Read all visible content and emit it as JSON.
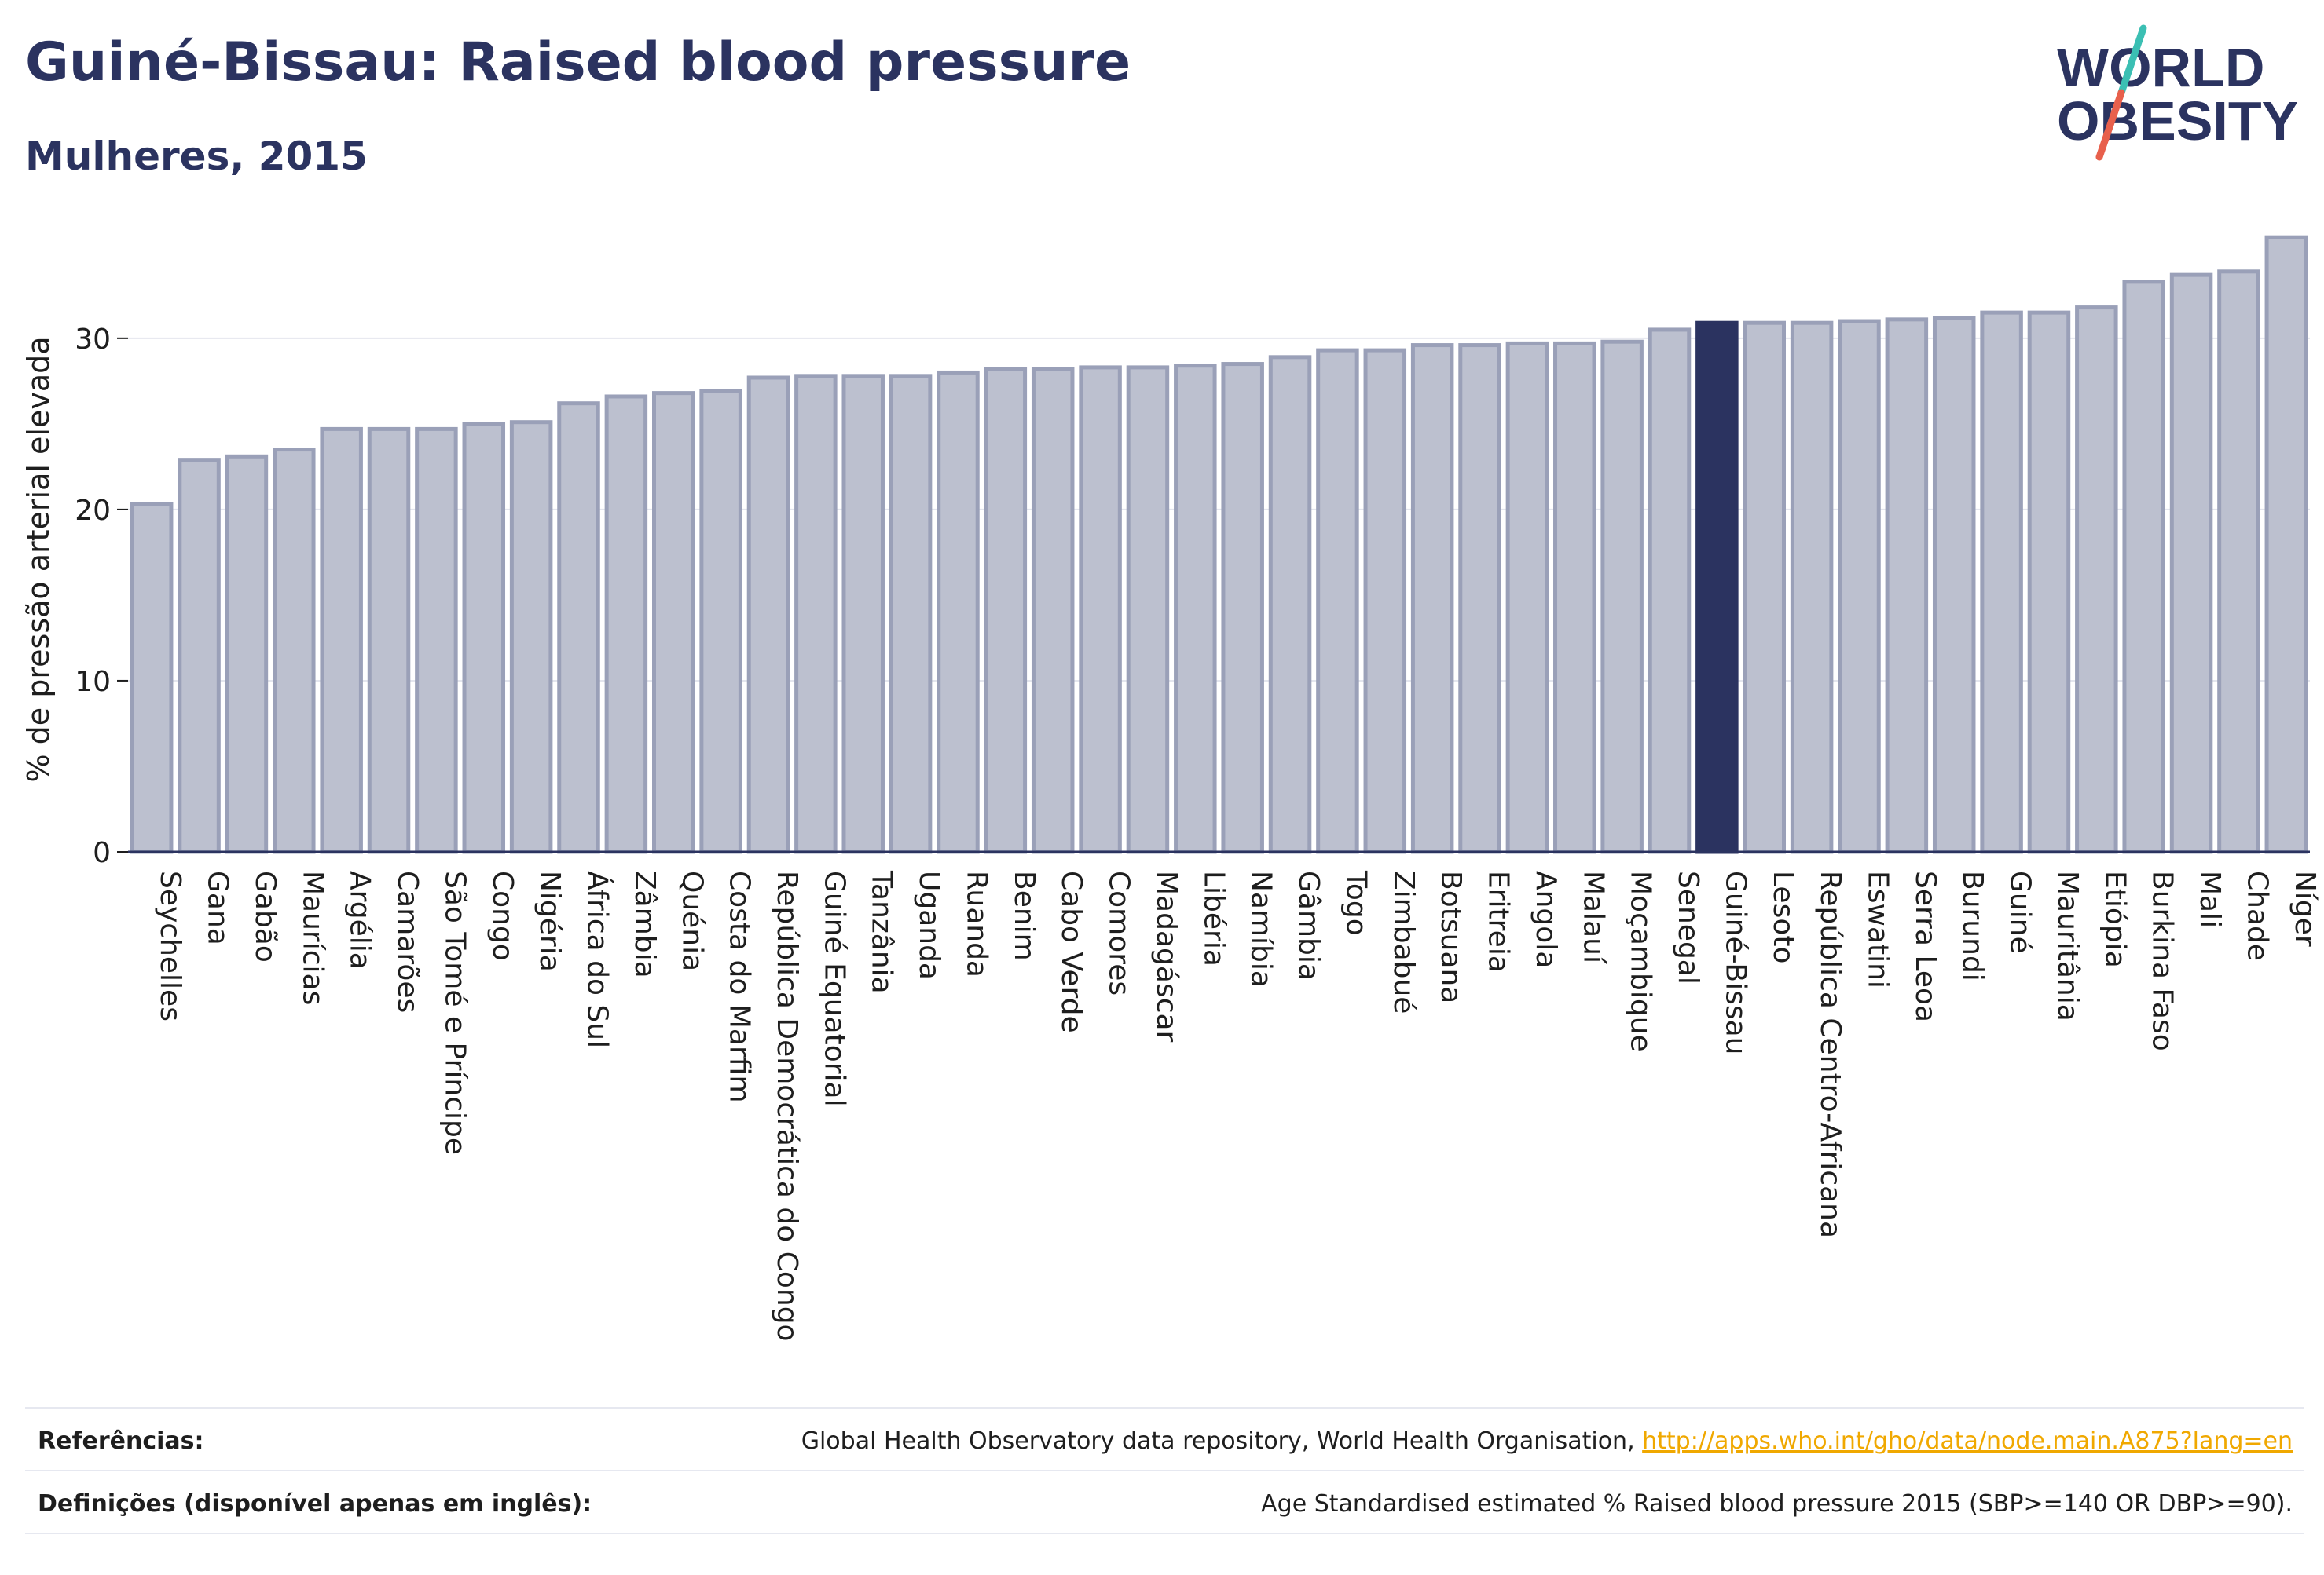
{
  "header": {
    "title": "Guiné-Bissau: Raised blood pressure",
    "subtitle": "Mulheres, 2015",
    "logo_line1": "WORLD",
    "logo_line2": "OBESITY"
  },
  "colors": {
    "bar_default": "#bcc0cf",
    "bar_border": "#9aa0b8",
    "bar_highlight": "#2b3360",
    "title": "#2b3360",
    "link": "#f0a800",
    "logo_teal": "#3bbfb3",
    "logo_red": "#e8604c"
  },
  "chart_data": {
    "type": "bar",
    "ylabel": "% de pressão arterial elevada",
    "ylim": [
      0,
      36
    ],
    "yticks": [
      0,
      10,
      20,
      30
    ],
    "highlight": "Guiné-Bissau",
    "grid": true,
    "categories": [
      "Seychelles",
      "Gana",
      "Gabão",
      "Maurícias",
      "Argélia",
      "Camarões",
      "São Tomé e Príncipe",
      "Congo",
      "Nigéria",
      "África do Sul",
      "Zâmbia",
      "Quénia",
      "Costa do Marfim",
      "República Democrática do Congo",
      "Guiné Equatorial",
      "Tanzânia",
      "Uganda",
      "Ruanda",
      "Benim",
      "Cabo Verde",
      "Comores",
      "Madagáscar",
      "Libéria",
      "Namíbia",
      "Gâmbia",
      "Togo",
      "Zimbabué",
      "Botsuana",
      "Eritreia",
      "Angola",
      "Malauí",
      "Moçambique",
      "Senegal",
      "Guiné-Bissau",
      "Lesoto",
      "República Centro-Africana",
      "Eswatini",
      "Serra Leoa",
      "Burundi",
      "Guiné",
      "Mauritânia",
      "Etiópia",
      "Burkina Faso",
      "Mali",
      "Chade",
      "Níger"
    ],
    "values": [
      20.3,
      22.9,
      23.1,
      23.5,
      24.7,
      24.7,
      24.7,
      25.0,
      25.1,
      26.2,
      26.6,
      26.8,
      26.9,
      27.7,
      27.8,
      27.8,
      27.8,
      28.0,
      28.2,
      28.2,
      28.3,
      28.3,
      28.4,
      28.5,
      28.9,
      29.3,
      29.3,
      29.6,
      29.6,
      29.7,
      29.7,
      29.8,
      30.5,
      30.9,
      30.9,
      30.9,
      31.0,
      31.1,
      31.2,
      31.5,
      31.5,
      31.8,
      33.3,
      33.7,
      33.9,
      35.9
    ]
  },
  "footer": {
    "references_label": "Referências:",
    "references_text": "Global Health Observatory data repository, World Health Organisation, ",
    "references_link": "http://apps.who.int/gho/data/node.main.A875?lang=en",
    "definitions_label": "Definições (disponível apenas em inglês):",
    "definitions_text": "Age Standardised estimated % Raised blood pressure 2015 (SBP>=140 OR DBP>=90)."
  }
}
